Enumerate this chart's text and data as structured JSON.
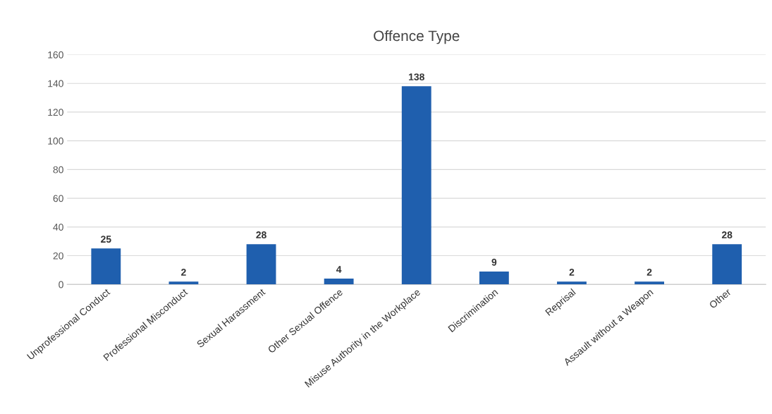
{
  "chart_data": {
    "type": "bar",
    "title": "Offence Type",
    "categories": [
      "Unprofessional Conduct",
      "Professional Misconduct",
      "Sexual Harassment",
      "Other Sexual Offence",
      "Misuse Authority in the Workplace",
      "Discrimination",
      "Reprisal",
      "Assault without a Weapon",
      "Other"
    ],
    "values": [
      25,
      2,
      28,
      4,
      138,
      9,
      2,
      2,
      28
    ],
    "color": "#1f5fae",
    "ylim": [
      0,
      160
    ],
    "yticks": [
      0,
      20,
      40,
      60,
      80,
      100,
      120,
      140,
      160
    ],
    "grid": "y",
    "data_labels": true
  }
}
